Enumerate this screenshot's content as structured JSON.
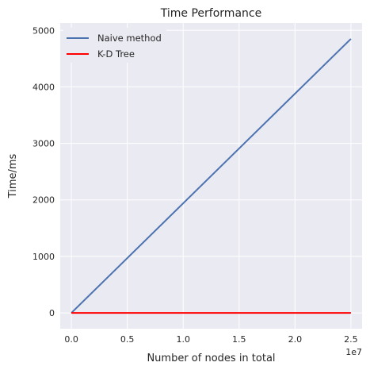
{
  "chart_data": {
    "type": "line",
    "title": "Time Performance",
    "xlabel": "Number of nodes in total",
    "ylabel": "Time/ms",
    "x_offset_label": "1e7",
    "xlim": [
      -0.1,
      2.6
    ],
    "ylim": [
      -280,
      5130
    ],
    "x_ticks": [
      0.0,
      0.5,
      1.0,
      1.5,
      2.0,
      2.5
    ],
    "x_tick_labels": [
      "0.0",
      "0.5",
      "1.0",
      "1.5",
      "2.0",
      "2.5"
    ],
    "y_ticks": [
      0,
      1000,
      2000,
      3000,
      4000,
      5000
    ],
    "y_tick_labels": [
      "0",
      "1000",
      "2000",
      "3000",
      "4000",
      "5000"
    ],
    "grid": true,
    "legend_position": "top-left",
    "x": [
      0.0,
      2.5
    ],
    "series": [
      {
        "name": "Naive method",
        "values": [
          0,
          4850
        ],
        "color": "#4c72b0"
      },
      {
        "name": "K-D Tree",
        "values": [
          0,
          0
        ],
        "color": "#ff0000"
      }
    ]
  }
}
